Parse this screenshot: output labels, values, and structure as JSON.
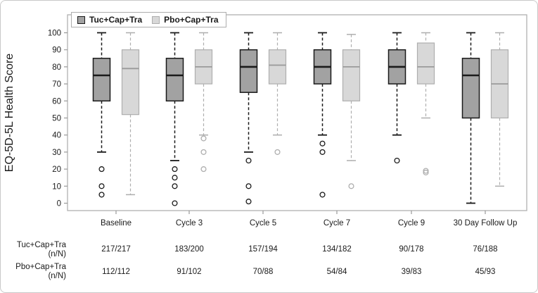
{
  "colors": {
    "dark_fill": "#a2a2a2",
    "dark_stroke": "#1a1a1a",
    "light_fill": "#d8d8d8",
    "light_stroke": "#aeaeae",
    "light_median": "#9a9a9a",
    "frame": "#b0b0b0",
    "tick": "#9a9a9a",
    "text": "#1a1a1a"
  },
  "legend": {
    "items": [
      {
        "label": "Tuc+Cap+Tra",
        "style": "dark"
      },
      {
        "label": "Pbo+Cap+Tra",
        "style": "light"
      }
    ]
  },
  "chart_data": {
    "type": "boxplot",
    "title": "",
    "ylabel": "EQ-5D-5L Health Score",
    "xlabel": "",
    "ylim": [
      0,
      100
    ],
    "yticks": [
      0,
      10,
      20,
      30,
      40,
      50,
      60,
      70,
      80,
      90,
      100
    ],
    "grid": false,
    "legend_position": "top-left",
    "categories": [
      "Baseline",
      "Cycle 3",
      "Cycle 5",
      "Cycle 7",
      "Cycle 9",
      "30 Day Follow Up"
    ],
    "series": [
      {
        "name": "Tuc+Cap+Tra",
        "style": "dark",
        "boxes": [
          {
            "whisker_low": 30,
            "q1": 60,
            "median": 75,
            "q3": 85,
            "whisker_high": 100,
            "outliers": [
              20,
              10,
              5
            ]
          },
          {
            "whisker_low": 25,
            "q1": 60,
            "median": 75,
            "q3": 85,
            "whisker_high": 100,
            "outliers": [
              20,
              15,
              10,
              0
            ]
          },
          {
            "whisker_low": 30,
            "q1": 65,
            "median": 80,
            "q3": 90,
            "whisker_high": 100,
            "outliers": [
              25,
              10,
              1
            ]
          },
          {
            "whisker_low": 40,
            "q1": 70,
            "median": 80,
            "q3": 90,
            "whisker_high": 100,
            "outliers": [
              35,
              30,
              5
            ]
          },
          {
            "whisker_low": 40,
            "q1": 70,
            "median": 80,
            "q3": 90,
            "whisker_high": 100,
            "outliers": [
              25
            ]
          },
          {
            "whisker_low": 0,
            "q1": 50,
            "median": 75,
            "q3": 85,
            "whisker_high": 100,
            "outliers": []
          }
        ]
      },
      {
        "name": "Pbo+Cap+Tra",
        "style": "light",
        "boxes": [
          {
            "whisker_low": 5,
            "q1": 52,
            "median": 79,
            "q3": 90,
            "whisker_high": 100,
            "outliers": []
          },
          {
            "whisker_low": 40,
            "q1": 70,
            "median": 80,
            "q3": 90,
            "whisker_high": 100,
            "outliers": [
              38,
              30,
              20
            ]
          },
          {
            "whisker_low": 40,
            "q1": 70,
            "median": 81,
            "q3": 90,
            "whisker_high": 100,
            "outliers": [
              30
            ]
          },
          {
            "whisker_low": 25,
            "q1": 60,
            "median": 80,
            "q3": 90,
            "whisker_high": 99,
            "outliers": [
              10
            ]
          },
          {
            "whisker_low": 50,
            "q1": 70,
            "median": 80,
            "q3": 94,
            "whisker_high": 100,
            "outliers": [
              19,
              18
            ]
          },
          {
            "whisker_low": 10,
            "q1": 50,
            "median": 70,
            "q3": 90,
            "whisker_high": 100,
            "outliers": []
          }
        ]
      }
    ]
  },
  "table": {
    "rows": [
      {
        "label": "Tuc+Cap+Tra",
        "sublabel": "(n/N)",
        "values": [
          "217/217",
          "183/200",
          "157/194",
          "134/182",
          "90/178",
          "76/188"
        ]
      },
      {
        "label": "Pbo+Cap+Tra",
        "sublabel": "(n/N)",
        "values": [
          "112/112",
          "91/102",
          "70/88",
          "54/84",
          "39/83",
          "45/93"
        ]
      }
    ]
  }
}
